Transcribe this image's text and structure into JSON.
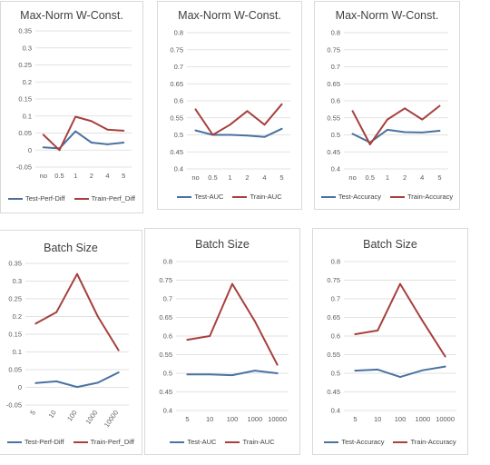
{
  "colors": {
    "test": "#4a72a0",
    "train": "#a6403d",
    "grid": "#d9d9d9"
  },
  "chart_data": [
    {
      "type": "line",
      "title": "Max-Norm W-Const.",
      "categories": [
        "no",
        "0.5",
        "1",
        "2",
        "4",
        "5"
      ],
      "ylim": [
        -0.05,
        0.35
      ],
      "yticks": [
        "-0.05",
        "0",
        "0.05",
        "0.1",
        "0.15",
        "0.2",
        "0.25",
        "0.3",
        "0.35"
      ],
      "grid": true,
      "legend": "bottom",
      "series": [
        {
          "name": "Test-Perf-Diff",
          "values": [
            0.008,
            0.005,
            0.055,
            0.022,
            0.017,
            0.022
          ]
        },
        {
          "name": "Train-Perf_Diff",
          "values": [
            0.045,
            0.0,
            0.098,
            0.085,
            0.06,
            0.057
          ]
        }
      ]
    },
    {
      "type": "line",
      "title": "Max-Norm W-Const.",
      "categories": [
        "no",
        "0.5",
        "1",
        "2",
        "4",
        "5"
      ],
      "ylim": [
        0.4,
        0.8
      ],
      "yticks": [
        "0.4",
        "0.45",
        "0.5",
        "0.55",
        "0.6",
        "0.65",
        "0.7",
        "0.75",
        "0.8"
      ],
      "grid": true,
      "legend": "bottom",
      "series": [
        {
          "name": "Test-AUC",
          "values": [
            0.513,
            0.5,
            0.5,
            0.498,
            0.494,
            0.518
          ]
        },
        {
          "name": "Train-AUC",
          "values": [
            0.575,
            0.5,
            0.53,
            0.57,
            0.53,
            0.59
          ]
        }
      ]
    },
    {
      "type": "line",
      "title": "Max-Norm W-Const.",
      "categories": [
        "no",
        "0.5",
        "1",
        "2",
        "4",
        "5"
      ],
      "ylim": [
        0.4,
        0.8
      ],
      "yticks": [
        "0.4",
        "0.45",
        "0.5",
        "0.55",
        "0.6",
        "0.65",
        "0.7",
        "0.75",
        "0.8"
      ],
      "grid": true,
      "legend": "bottom",
      "series": [
        {
          "name": "Test-Accuracy",
          "values": [
            0.503,
            0.478,
            0.515,
            0.508,
            0.507,
            0.512
          ]
        },
        {
          "name": "Train-Accuracy",
          "values": [
            0.57,
            0.472,
            0.545,
            0.578,
            0.545,
            0.585
          ]
        }
      ]
    },
    {
      "type": "line",
      "title": "Batch Size",
      "categories": [
        "5",
        "10",
        "100",
        "1000",
        "10000"
      ],
      "ylim": [
        -0.05,
        0.35
      ],
      "yticks": [
        "-0.05",
        "0",
        "0.05",
        "0.1",
        "0.15",
        "0.2",
        "0.25",
        "0.3",
        "0.35"
      ],
      "grid": true,
      "legend": "bottom",
      "rotate_x": true,
      "series": [
        {
          "name": "Test-Perf-Diff",
          "values": [
            0.012,
            0.017,
            0.001,
            0.013,
            0.042
          ]
        },
        {
          "name": "Train-Perf_Diff",
          "values": [
            0.18,
            0.212,
            0.32,
            0.2,
            0.105
          ]
        }
      ]
    },
    {
      "type": "line",
      "title": "Batch Size",
      "categories": [
        "5",
        "10",
        "100",
        "1000",
        "10000"
      ],
      "ylim": [
        0.4,
        0.8
      ],
      "yticks": [
        "0.4",
        "0.45",
        "0.5",
        "0.55",
        "0.6",
        "0.65",
        "0.7",
        "0.75",
        "0.8"
      ],
      "grid": true,
      "legend": "bottom",
      "series": [
        {
          "name": "Test-AUC",
          "values": [
            0.497,
            0.497,
            0.495,
            0.507,
            0.5
          ]
        },
        {
          "name": "Train-AUC",
          "values": [
            0.59,
            0.6,
            0.74,
            0.64,
            0.523
          ]
        }
      ]
    },
    {
      "type": "line",
      "title": "Batch Size",
      "categories": [
        "5",
        "10",
        "100",
        "1000",
        "10000"
      ],
      "ylim": [
        0.4,
        0.8
      ],
      "yticks": [
        "0.4",
        "0.45",
        "0.5",
        "0.55",
        "0.6",
        "0.65",
        "0.7",
        "0.75",
        "0.8"
      ],
      "grid": true,
      "legend": "bottom",
      "series": [
        {
          "name": "Test-Accuracy",
          "values": [
            0.507,
            0.51,
            0.49,
            0.508,
            0.518
          ]
        },
        {
          "name": "Train-Accuracy",
          "values": [
            0.605,
            0.615,
            0.74,
            0.64,
            0.545
          ]
        }
      ]
    }
  ]
}
